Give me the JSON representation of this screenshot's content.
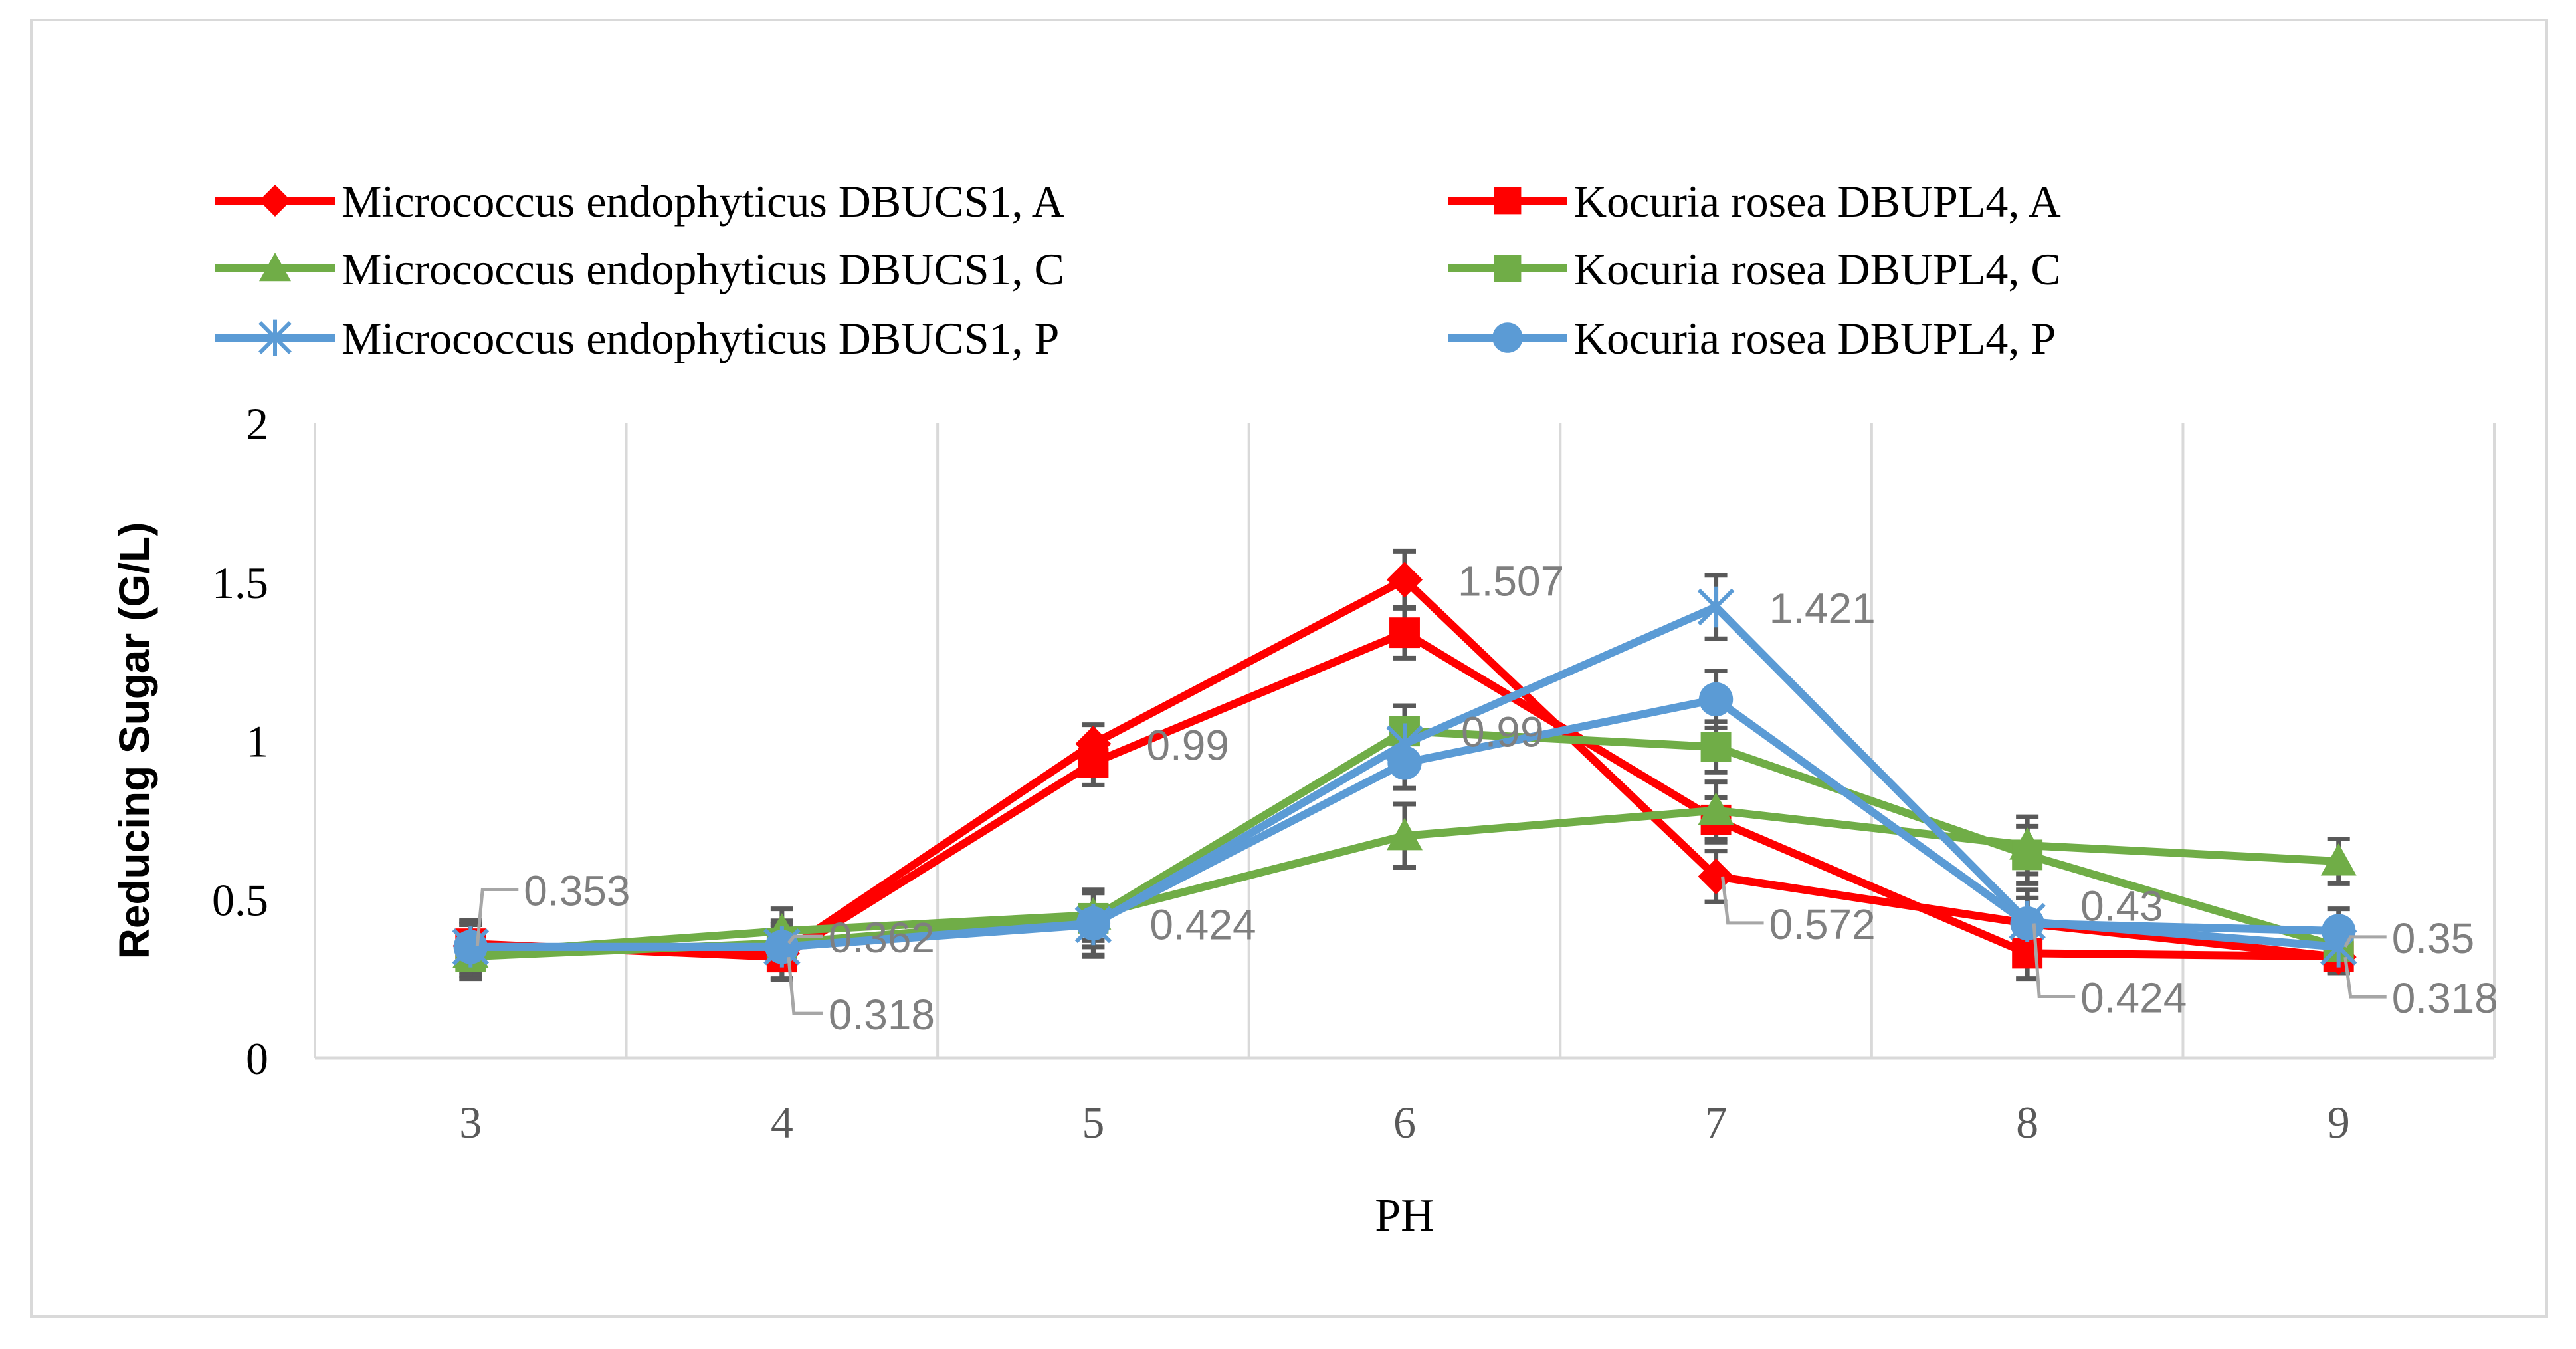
{
  "chart_data": {
    "type": "line",
    "title": "",
    "xlabel": "PH",
    "ylabel": "Reducing Sugar (G/L)",
    "x": [
      3,
      4,
      5,
      6,
      7,
      8,
      9
    ],
    "ylim": [
      0,
      2
    ],
    "yticks": [
      0,
      0.5,
      1,
      1.5,
      2
    ],
    "ytick_labels": [
      "0",
      "0.5",
      "1",
      "1.5",
      "2"
    ],
    "grid": "vertical",
    "legend_position": "top",
    "series": [
      {
        "name": "Micrococcus endophyticus DBUCS1, A",
        "marker": "diamond",
        "color": "#ff0000",
        "values": [
          0.353,
          0.33,
          0.99,
          1.507,
          0.572,
          0.424,
          0.318
        ],
        "errors": [
          0.08,
          0.08,
          0.06,
          0.09,
          0.08,
          0.08,
          0.05
        ]
      },
      {
        "name": "Kocuria rosea DBUPL4, A",
        "marker": "square",
        "color": "#ff0000",
        "values": [
          0.36,
          0.318,
          0.93,
          1.34,
          0.75,
          0.33,
          0.32
        ],
        "errors": [
          0.07,
          0.07,
          0.07,
          0.08,
          0.07,
          0.08,
          0.05
        ]
      },
      {
        "name": "Micrococcus endophyticus DBUCS1, C",
        "marker": "triangle",
        "color": "#70ad47",
        "values": [
          0.33,
          0.4,
          0.45,
          0.7,
          0.78,
          0.67,
          0.62
        ],
        "errors": [
          0.07,
          0.07,
          0.08,
          0.1,
          0.09,
          0.09,
          0.07
        ]
      },
      {
        "name": "Kocuria rosea DBUPL4, C",
        "marker": "square",
        "color": "#70ad47",
        "values": [
          0.32,
          0.362,
          0.44,
          1.03,
          0.98,
          0.64,
          0.35
        ],
        "errors": [
          0.07,
          0.07,
          0.09,
          0.08,
          0.08,
          0.09,
          0.07
        ]
      },
      {
        "name": "Micrococcus endophyticus DBUCS1, P",
        "marker": "star",
        "color": "#5b9bd5",
        "values": [
          0.35,
          0.35,
          0.42,
          0.99,
          1.421,
          0.43,
          0.35
        ],
        "errors": [
          0.07,
          0.07,
          0.1,
          0.08,
          0.1,
          0.1,
          0.07
        ]
      },
      {
        "name": "Kocuria rosea DBUPL4, P",
        "marker": "circle",
        "color": "#5b9bd5",
        "values": [
          0.35,
          0.35,
          0.424,
          0.93,
          1.13,
          0.424,
          0.4
        ],
        "errors": [
          0.07,
          0.07,
          0.1,
          0.08,
          0.09,
          0.08,
          0.07
        ]
      }
    ],
    "data_labels": [
      {
        "text": "0.353",
        "x": 3,
        "y": 0.353
      },
      {
        "text": "0.362",
        "x": 4,
        "y": 0.362
      },
      {
        "text": "0.318",
        "x": 4,
        "y": 0.318
      },
      {
        "text": "0.99",
        "x": 5,
        "y": 0.99
      },
      {
        "text": "0.424",
        "x": 5,
        "y": 0.424
      },
      {
        "text": "1.507",
        "x": 6,
        "y": 1.507
      },
      {
        "text": "0.99",
        "x": 6,
        "y": 0.99
      },
      {
        "text": "1.421",
        "x": 7,
        "y": 1.421
      },
      {
        "text": "0.572",
        "x": 7,
        "y": 0.572
      },
      {
        "text": "0.43",
        "x": 8,
        "y": 0.43
      },
      {
        "text": "0.424",
        "x": 8,
        "y": 0.424
      },
      {
        "text": "0.35",
        "x": 9,
        "y": 0.35
      },
      {
        "text": "0.318",
        "x": 9,
        "y": 0.318
      }
    ]
  }
}
